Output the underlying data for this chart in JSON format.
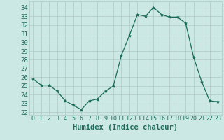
{
  "x": [
    0,
    1,
    2,
    3,
    4,
    5,
    6,
    7,
    8,
    9,
    10,
    11,
    12,
    13,
    14,
    15,
    16,
    17,
    18,
    19,
    20,
    21,
    22,
    23
  ],
  "y": [
    25.8,
    25.1,
    25.1,
    24.4,
    23.3,
    22.8,
    22.3,
    23.3,
    23.5,
    24.4,
    25.0,
    28.5,
    30.8,
    33.2,
    33.0,
    34.0,
    33.2,
    32.9,
    32.9,
    32.2,
    28.3,
    25.5,
    23.3,
    23.2
  ],
  "line_color": "#1a6b5a",
  "marker": "*",
  "marker_size": 3,
  "bg_color": "#cce8e4",
  "grid_color": "#b0c8c4",
  "xlabel": "Humidex (Indice chaleur)",
  "ylabel_ticks": [
    22,
    23,
    24,
    25,
    26,
    27,
    28,
    29,
    30,
    31,
    32,
    33,
    34
  ],
  "xlim": [
    -0.5,
    23.5
  ],
  "ylim": [
    21.7,
    34.7
  ],
  "xticks": [
    0,
    1,
    2,
    3,
    4,
    5,
    6,
    7,
    8,
    9,
    10,
    11,
    12,
    13,
    14,
    15,
    16,
    17,
    18,
    19,
    20,
    21,
    22,
    23
  ],
  "tick_color": "#1a6b5a",
  "xlabel_fontsize": 7.5,
  "ytick_fontsize": 6.5,
  "xtick_fontsize": 6.0
}
